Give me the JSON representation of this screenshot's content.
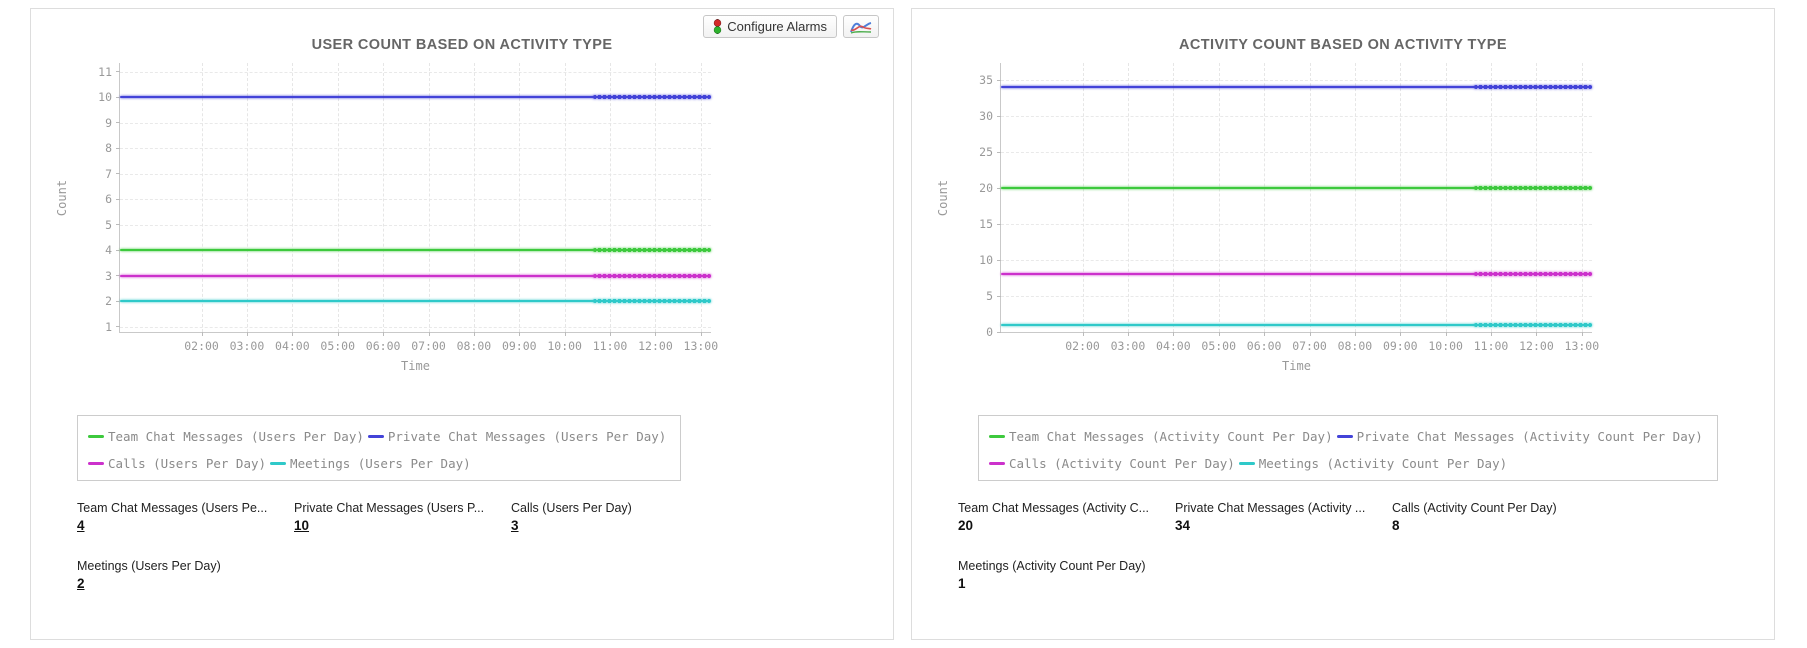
{
  "toolbar": {
    "configure_alarms_label": "Configure Alarms"
  },
  "chart_data": [
    {
      "type": "line",
      "title": "USER COUNT BASED ON ACTIVITY TYPE",
      "xlabel": "Time",
      "ylabel": "Count",
      "x_ticks": [
        "02:00",
        "03:00",
        "04:00",
        "05:00",
        "06:00",
        "07:00",
        "08:00",
        "09:00",
        "10:00",
        "11:00",
        "12:00",
        "13:00"
      ],
      "y_ticks": [
        1,
        2,
        3,
        4,
        5,
        6,
        7,
        8,
        9,
        10,
        11
      ],
      "ylim": [
        0.8,
        11.35
      ],
      "grid": true,
      "legend_position": "bottom",
      "note": "All series are flat horizontal lines, constant across 02:00-13:00",
      "series": [
        {
          "name": "Team Chat Messages (Users Per Day)",
          "color": "#3dc93d",
          "value": 4
        },
        {
          "name": "Private Chat Messages (Users Per Day)",
          "color": "#4343d8",
          "value": 10
        },
        {
          "name": "Calls (Users Per Day)",
          "color": "#cc31cc",
          "value": 3
        },
        {
          "name": "Meetings (Users Per Day)",
          "color": "#2fc9c9",
          "value": 2
        }
      ]
    },
    {
      "type": "line",
      "title": "ACTIVITY COUNT BASED ON ACTIVITY TYPE",
      "xlabel": "Time",
      "ylabel": "Count",
      "x_ticks": [
        "02:00",
        "03:00",
        "04:00",
        "05:00",
        "06:00",
        "07:00",
        "08:00",
        "09:00",
        "10:00",
        "11:00",
        "12:00",
        "13:00"
      ],
      "y_ticks": [
        0,
        5,
        10,
        15,
        20,
        25,
        30,
        35
      ],
      "ylim": [
        0,
        37.4
      ],
      "grid": true,
      "legend_position": "bottom",
      "note": "All series are flat horizontal lines, constant across 02:00-13:00",
      "series": [
        {
          "name": "Team Chat Messages (Activity Count Per Day)",
          "color": "#3dc93d",
          "value": 20
        },
        {
          "name": "Private Chat Messages (Activity Count Per Day)",
          "color": "#4343d8",
          "value": 34
        },
        {
          "name": "Calls (Activity Count Per Day)",
          "color": "#cc31cc",
          "value": 8
        },
        {
          "name": "Meetings (Activity Count Per Day)",
          "color": "#2fc9c9",
          "value": 1
        }
      ]
    }
  ],
  "panels": [
    {
      "stats": [
        {
          "label": "Team Chat Messages (Users Pe...",
          "value": "4",
          "underlined": true
        },
        {
          "label": "Private Chat Messages (Users P...",
          "value": "10",
          "underlined": true
        },
        {
          "label": "Calls (Users Per Day)",
          "value": "3",
          "underlined": true
        },
        {
          "label": "Meetings (Users Per Day)",
          "value": "2",
          "underlined": true
        }
      ]
    },
    {
      "stats": [
        {
          "label": "Team Chat Messages (Activity C...",
          "value": "20",
          "underlined": false
        },
        {
          "label": "Private Chat Messages (Activity ...",
          "value": "34",
          "underlined": false
        },
        {
          "label": "Calls (Activity Count Per Day)",
          "value": "8",
          "underlined": false
        },
        {
          "label": "Meetings (Activity Count Per Day)",
          "value": "1",
          "underlined": false
        }
      ]
    }
  ]
}
